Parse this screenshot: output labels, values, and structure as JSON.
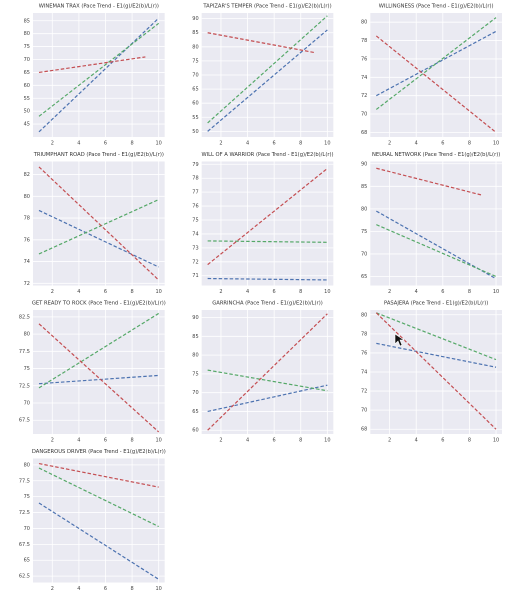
{
  "chart_data": [
    {
      "type": "line",
      "title": "WINEMAN TRAX (Pace Trend - E1(g)/E2(b)/L(r))",
      "xlim": [
        0.55,
        10.45
      ],
      "xticks": [
        2,
        4,
        6,
        8,
        10
      ],
      "ylim": [
        40,
        88
      ],
      "yticks": [
        45,
        50,
        55,
        60,
        65,
        70,
        75,
        80,
        85
      ],
      "grid": true,
      "series": [
        {
          "color": "#4c72b0",
          "x": [
            1,
            10
          ],
          "values": [
            42,
            86
          ]
        },
        {
          "color": "#55a868",
          "x": [
            1,
            10
          ],
          "values": [
            48,
            84
          ]
        },
        {
          "color": "#c44e52",
          "x": [
            1,
            9
          ],
          "values": [
            65,
            71
          ]
        }
      ]
    },
    {
      "type": "line",
      "title": "TAPIZAR'S TEMPER (Pace Trend - E1(g)/E2(b)/L(r))",
      "xlim": [
        0.55,
        10.45
      ],
      "xticks": [
        2,
        4,
        6,
        8,
        10
      ],
      "ylim": [
        48,
        92
      ],
      "yticks": [
        50,
        55,
        60,
        65,
        70,
        75,
        80,
        85,
        90
      ],
      "grid": true,
      "series": [
        {
          "color": "#4c72b0",
          "x": [
            1,
            10
          ],
          "values": [
            50,
            86
          ]
        },
        {
          "color": "#55a868",
          "x": [
            1,
            10
          ],
          "values": [
            53,
            91
          ]
        },
        {
          "color": "#c44e52",
          "x": [
            1,
            9
          ],
          "values": [
            85,
            78
          ]
        }
      ]
    },
    {
      "type": "line",
      "title": "WILLINGNESS (Pace Trend - E1(g)/E2(b)/L(r))",
      "xlim": [
        0.55,
        10.45
      ],
      "xticks": [
        2,
        4,
        6,
        8,
        10
      ],
      "ylim": [
        67.5,
        81
      ],
      "yticks": [
        68,
        70,
        72,
        74,
        76,
        78,
        80
      ],
      "grid": true,
      "series": [
        {
          "color": "#4c72b0",
          "x": [
            1,
            10
          ],
          "values": [
            72,
            79
          ]
        },
        {
          "color": "#55a868",
          "x": [
            1,
            10
          ],
          "values": [
            70.5,
            80.5
          ]
        },
        {
          "color": "#c44e52",
          "x": [
            1,
            10
          ],
          "values": [
            78.5,
            68
          ]
        }
      ]
    },
    {
      "type": "line",
      "title": "TRIUMPHANT ROAD (Pace Trend - E1(g)/E2(b)/L(r))",
      "xlim": [
        0.55,
        10.45
      ],
      "xticks": [
        2,
        4,
        6,
        8,
        10
      ],
      "ylim": [
        71.8,
        83.2
      ],
      "yticks": [
        72,
        74,
        76,
        78,
        80,
        82
      ],
      "grid": true,
      "series": [
        {
          "color": "#4c72b0",
          "x": [
            1,
            10
          ],
          "values": [
            78.7,
            73.5
          ]
        },
        {
          "color": "#55a868",
          "x": [
            1,
            10
          ],
          "values": [
            74.7,
            79.7
          ]
        },
        {
          "color": "#c44e52",
          "x": [
            1,
            10
          ],
          "values": [
            82.7,
            72.3
          ]
        }
      ]
    },
    {
      "type": "line",
      "title": "WILL OF A WARRIOR (Pace Trend - E1(g)/E2(b)/L(r))",
      "xlim": [
        0.55,
        10.45
      ],
      "xticks": [
        2,
        4,
        6,
        8,
        10
      ],
      "ylim": [
        70.3,
        79.2
      ],
      "yticks": [
        71,
        72,
        73,
        74,
        75,
        76,
        77,
        78,
        79
      ],
      "grid": true,
      "series": [
        {
          "color": "#4c72b0",
          "x": [
            1,
            10
          ],
          "values": [
            70.8,
            70.7
          ]
        },
        {
          "color": "#55a868",
          "x": [
            1,
            10
          ],
          "values": [
            73.5,
            73.4
          ]
        },
        {
          "color": "#c44e52",
          "x": [
            1,
            10
          ],
          "values": [
            71.8,
            78.7
          ]
        }
      ]
    },
    {
      "type": "line",
      "title": "NEURAL NETWORK (Pace Trend - E1(g)/E2(b)/L(r))",
      "xlim": [
        0.55,
        10.45
      ],
      "xticks": [
        2,
        4,
        6,
        8,
        10
      ],
      "ylim": [
        63,
        90.5
      ],
      "yticks": [
        65,
        70,
        75,
        80,
        85,
        90
      ],
      "grid": true,
      "series": [
        {
          "color": "#4c72b0",
          "x": [
            1,
            10
          ],
          "values": [
            79.5,
            64.5
          ]
        },
        {
          "color": "#55a868",
          "x": [
            1,
            10
          ],
          "values": [
            76.5,
            65
          ]
        },
        {
          "color": "#c44e52",
          "x": [
            1,
            9
          ],
          "values": [
            89,
            83
          ]
        }
      ]
    },
    {
      "type": "line",
      "title": "GET READY TO ROCK (Pace Trend - E1(g)/E2(b)/L(r))",
      "xlim": [
        0.55,
        10.45
      ],
      "xticks": [
        2,
        4,
        6,
        8,
        10
      ],
      "ylim": [
        65.5,
        83.5
      ],
      "yticks": [
        67.5,
        70,
        72.5,
        75,
        77.5,
        80,
        82.5
      ],
      "grid": true,
      "series": [
        {
          "color": "#4c72b0",
          "x": [
            1,
            10
          ],
          "values": [
            72.8,
            74
          ]
        },
        {
          "color": "#55a868",
          "x": [
            1,
            10
          ],
          "values": [
            72.2,
            83
          ]
        },
        {
          "color": "#c44e52",
          "x": [
            1,
            10
          ],
          "values": [
            81.5,
            65.8
          ]
        }
      ]
    },
    {
      "type": "line",
      "title": "GARRINCHA (Pace Trend - E1(g)/E2(b)/L(r))",
      "xlim": [
        0.55,
        10.45
      ],
      "xticks": [
        2,
        4,
        6,
        8,
        10
      ],
      "ylim": [
        59,
        92
      ],
      "yticks": [
        60,
        65,
        70,
        75,
        80,
        85,
        90
      ],
      "grid": true,
      "series": [
        {
          "color": "#4c72b0",
          "x": [
            1,
            10
          ],
          "values": [
            65,
            72
          ]
        },
        {
          "color": "#55a868",
          "x": [
            1,
            10
          ],
          "values": [
            76,
            70.5
          ]
        },
        {
          "color": "#c44e52",
          "x": [
            1,
            10
          ],
          "values": [
            60,
            91
          ]
        }
      ]
    },
    {
      "type": "line",
      "title": "PASAJERA (Pace Trend - E1(g)/E2(b)/L(r))",
      "xlim": [
        0.55,
        10.45
      ],
      "xticks": [
        2,
        4,
        6,
        8,
        10
      ],
      "ylim": [
        67.5,
        80.5
      ],
      "yticks": [
        68,
        70,
        72,
        74,
        76,
        78,
        80
      ],
      "grid": true,
      "series": [
        {
          "color": "#4c72b0",
          "x": [
            1,
            10
          ],
          "values": [
            77,
            74.5
          ]
        },
        {
          "color": "#55a868",
          "x": [
            1,
            10
          ],
          "values": [
            80.2,
            75.3
          ]
        },
        {
          "color": "#c44e52",
          "x": [
            1,
            10
          ],
          "values": [
            80.2,
            68
          ]
        }
      ]
    },
    {
      "type": "line",
      "title": "DANGEROUS DRIVER (Pace Trend - E1(g)/E2(b)/L(r))",
      "xlim": [
        0.55,
        10.45
      ],
      "xticks": [
        2,
        4,
        6,
        8,
        10
      ],
      "ylim": [
        61.5,
        81
      ],
      "yticks": [
        62.5,
        65,
        67.5,
        70,
        72.5,
        75,
        77.5,
        80
      ],
      "grid": true,
      "series": [
        {
          "color": "#4c72b0",
          "x": [
            1,
            10
          ],
          "values": [
            74,
            62
          ]
        },
        {
          "color": "#55a868",
          "x": [
            1,
            10
          ],
          "values": [
            79.5,
            70.3
          ]
        },
        {
          "color": "#c44e52",
          "x": [
            1,
            10
          ],
          "values": [
            80.2,
            76.5
          ]
        }
      ]
    }
  ]
}
